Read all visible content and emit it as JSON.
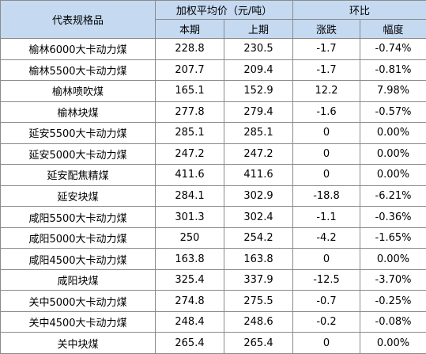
{
  "header": {
    "spec": "代表规格品",
    "weighted_price": "加权平均价（元/吨）",
    "mom": "环比",
    "current": "本期",
    "previous": "上期",
    "change": "涨跌",
    "rate": "幅度"
  },
  "rows": [
    {
      "name": "榆林6000大卡动力煤",
      "current": "228.8",
      "previous": "230.5",
      "change": "-1.7",
      "rate": "-0.74%"
    },
    {
      "name": "榆林5500大卡动力煤",
      "current": "207.7",
      "previous": "209.4",
      "change": "-1.7",
      "rate": "-0.81%"
    },
    {
      "name": "榆林喷吹煤",
      "current": "165.1",
      "previous": "152.9",
      "change": "12.2",
      "rate": "7.98%"
    },
    {
      "name": "榆林块煤",
      "current": "277.8",
      "previous": "279.4",
      "change": "-1.6",
      "rate": "-0.57%"
    },
    {
      "name": "延安5500大卡动力煤",
      "current": "285.1",
      "previous": "285.1",
      "change": "0",
      "rate": "0.00%"
    },
    {
      "name": "延安5000大卡动力煤",
      "current": "247.2",
      "previous": "247.2",
      "change": "0",
      "rate": "0.00%"
    },
    {
      "name": "延安配焦精煤",
      "current": "411.6",
      "previous": "411.6",
      "change": "0",
      "rate": "0.00%"
    },
    {
      "name": "延安块煤",
      "current": "284.1",
      "previous": "302.9",
      "change": "-18.8",
      "rate": "-6.21%"
    },
    {
      "name": "咸阳5500大卡动力煤",
      "current": "301.3",
      "previous": "302.4",
      "change": "-1.1",
      "rate": "-0.36%"
    },
    {
      "name": "咸阳5000大卡动力煤",
      "current": "250",
      "previous": "254.2",
      "change": "-4.2",
      "rate": "-1.65%"
    },
    {
      "name": "咸阳4500大卡动力煤",
      "current": "163.8",
      "previous": "163.8",
      "change": "0",
      "rate": "0.00%"
    },
    {
      "name": "咸阳块煤",
      "current": "325.4",
      "previous": "337.9",
      "change": "-12.5",
      "rate": "-3.70%"
    },
    {
      "name": "关中5000大卡动力煤",
      "current": "274.8",
      "previous": "275.5",
      "change": "-0.7",
      "rate": "-0.25%"
    },
    {
      "name": "关中4500大卡动力煤",
      "current": "248.4",
      "previous": "248.6",
      "change": "-0.2",
      "rate": "-0.08%"
    },
    {
      "name": "关中块煤",
      "current": "265.4",
      "previous": "265.4",
      "change": "0",
      "rate": "0.00%"
    }
  ]
}
